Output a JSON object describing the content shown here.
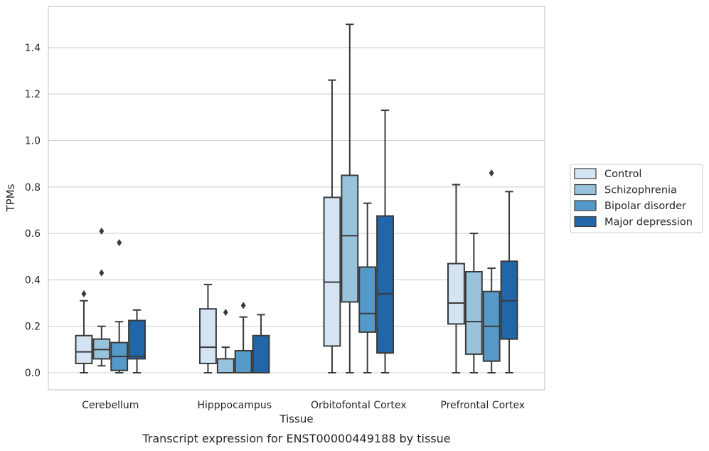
{
  "chart_data": {
    "type": "box",
    "xlabel": "Tissue",
    "ylabel": "TPMs",
    "caption": "Transcript expression for ENST00000449188 by tissue",
    "ylim": [
      -0.07,
      1.56
    ],
    "yticks": [
      "0.0",
      "0.2",
      "0.4",
      "0.6",
      "0.8",
      "1.0",
      "1.2",
      "1.4"
    ],
    "ytick_values": [
      0,
      0.2,
      0.4,
      0.6,
      0.8,
      1.0,
      1.2,
      1.4
    ],
    "grid": "horizontal",
    "legend_position": "right",
    "categories": [
      "Cerebellum",
      "Hipppocampus",
      "Orbitofontal Cortex",
      "Prefrontal Cortex"
    ],
    "series": [
      {
        "name": "Control",
        "color": "#d5e4f3",
        "boxes": [
          {
            "whislo": 0.0,
            "q1": 0.04,
            "med": 0.09,
            "q3": 0.16,
            "whishi": 0.31,
            "fliers": [
              0.34
            ]
          },
          {
            "whislo": 0.0,
            "q1": 0.04,
            "med": 0.11,
            "q3": 0.275,
            "whishi": 0.38,
            "fliers": []
          },
          {
            "whislo": 0.0,
            "q1": 0.115,
            "med": 0.39,
            "q3": 0.755,
            "whishi": 1.26,
            "fliers": []
          },
          {
            "whislo": 0.0,
            "q1": 0.21,
            "med": 0.3,
            "q3": 0.47,
            "whishi": 0.81,
            "fliers": []
          }
        ]
      },
      {
        "name": "Schizophrenia",
        "color": "#99c3dd",
        "boxes": [
          {
            "whislo": 0.03,
            "q1": 0.06,
            "med": 0.1,
            "q3": 0.145,
            "whishi": 0.2,
            "fliers": [
              0.43,
              0.61
            ]
          },
          {
            "whislo": 0.0,
            "q1": 0.0,
            "med": 0.0,
            "q3": 0.06,
            "whishi": 0.11,
            "fliers": [
              0.26
            ]
          },
          {
            "whislo": 0.0,
            "q1": 0.305,
            "med": 0.59,
            "q3": 0.85,
            "whishi": 1.5,
            "fliers": []
          },
          {
            "whislo": 0.0,
            "q1": 0.08,
            "med": 0.22,
            "q3": 0.435,
            "whishi": 0.6,
            "fliers": []
          }
        ]
      },
      {
        "name": "Bipolar disorder",
        "color": "#5499c7",
        "boxes": [
          {
            "whislo": 0.0,
            "q1": 0.01,
            "med": 0.07,
            "q3": 0.13,
            "whishi": 0.22,
            "fliers": [
              0.56
            ]
          },
          {
            "whislo": 0.0,
            "q1": 0.0,
            "med": 0.0,
            "q3": 0.095,
            "whishi": 0.24,
            "fliers": [
              0.29
            ]
          },
          {
            "whislo": 0.0,
            "q1": 0.175,
            "med": 0.255,
            "q3": 0.455,
            "whishi": 0.73,
            "fliers": []
          },
          {
            "whislo": 0.0,
            "q1": 0.05,
            "med": 0.2,
            "q3": 0.35,
            "whishi": 0.45,
            "fliers": [
              0.86
            ]
          }
        ]
      },
      {
        "name": "Major depression",
        "color": "#2166a8",
        "boxes": [
          {
            "whislo": 0.0,
            "q1": 0.06,
            "med": 0.07,
            "q3": 0.225,
            "whishi": 0.27,
            "fliers": []
          },
          {
            "whislo": 0.0,
            "q1": 0.0,
            "med": 0.0,
            "q3": 0.16,
            "whishi": 0.25,
            "fliers": []
          },
          {
            "whislo": 0.0,
            "q1": 0.085,
            "med": 0.34,
            "q3": 0.675,
            "whishi": 1.13,
            "fliers": []
          },
          {
            "whislo": 0.0,
            "q1": 0.145,
            "med": 0.31,
            "q3": 0.48,
            "whishi": 0.78,
            "fliers": []
          }
        ]
      }
    ]
  }
}
